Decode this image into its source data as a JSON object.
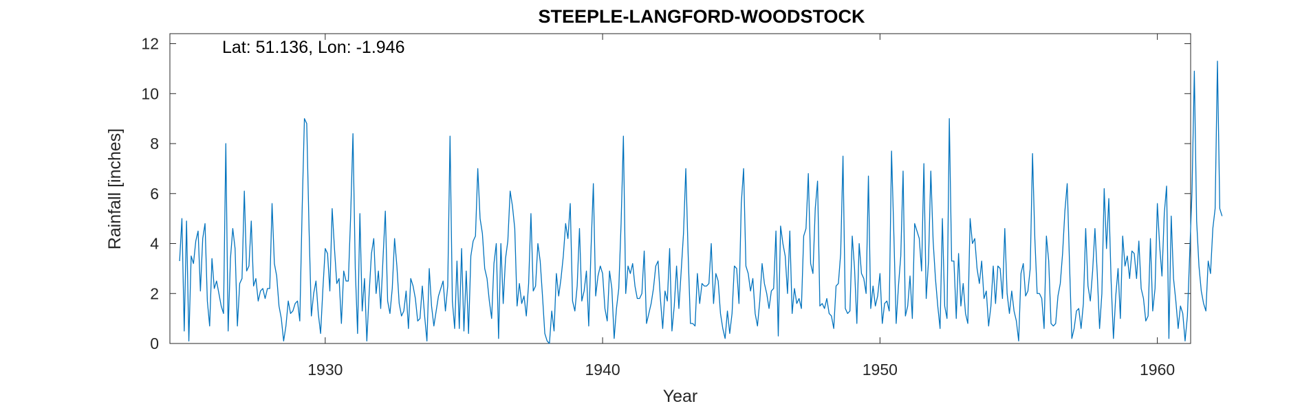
{
  "chart_data": {
    "type": "line",
    "title": "STEEPLE-LANGFORD-WOODSTOCK",
    "annotation": "Lat: 51.136, Lon: -1.946",
    "xlabel": "Year",
    "ylabel": "Rainfall [inches]",
    "xlim": [
      1924.4,
      1961.2
    ],
    "ylim": [
      0,
      12.4
    ],
    "xticks": [
      1930,
      1940,
      1950,
      1960
    ],
    "yticks": [
      0,
      2,
      4,
      6,
      8,
      10,
      12
    ],
    "x_start": 1924.75,
    "x_step_years": 0.08333333,
    "grid": false,
    "box": true,
    "line_color": "#0072BD",
    "series": [
      {
        "values": [
          3.3,
          5.0,
          0.5,
          4.9,
          0.1,
          3.5,
          3.2,
          4.1,
          4.5,
          2.1,
          4.2,
          4.8,
          1.7,
          0.7,
          3.4,
          2.2,
          2.5,
          2.0,
          1.5,
          1.2,
          8.0,
          0.5,
          3.4,
          4.6,
          3.8,
          0.7,
          2.4,
          2.6,
          6.1,
          2.9,
          3.1,
          4.9,
          2.3,
          2.6,
          1.7,
          2.1,
          2.2,
          1.8,
          2.2,
          2.2,
          5.6,
          3.2,
          2.7,
          1.5,
          1.0,
          0.1,
          0.7,
          1.7,
          1.2,
          1.3,
          1.6,
          1.7,
          0.9,
          5.3,
          9.0,
          8.8,
          4.6,
          1.1,
          2.0,
          2.5,
          1.2,
          0.4,
          2.2,
          3.8,
          3.6,
          2.1,
          5.4,
          3.8,
          2.4,
          2.6,
          0.8,
          2.9,
          2.5,
          2.5,
          5.1,
          8.4,
          3.0,
          0.4,
          5.2,
          1.3,
          2.6,
          0.1,
          2.0,
          3.6,
          4.2,
          2.0,
          2.9,
          1.4,
          3.4,
          5.3,
          1.7,
          1.2,
          2.2,
          4.2,
          3.1,
          1.6,
          1.1,
          1.3,
          2.1,
          0.6,
          2.6,
          2.3,
          1.8,
          0.9,
          1.0,
          2.3,
          1.1,
          0.1,
          3.0,
          1.5,
          0.7,
          1.3,
          1.9,
          2.2,
          2.5,
          1.3,
          2.3,
          8.3,
          1.7,
          0.6,
          3.3,
          0.6,
          3.8,
          0.5,
          2.9,
          0.4,
          3.5,
          4.1,
          4.3,
          7.0,
          5.0,
          4.4,
          3.0,
          2.6,
          1.7,
          1.0,
          3.2,
          4.0,
          0.2,
          4.0,
          1.6,
          3.4,
          4.1,
          6.1,
          5.5,
          4.6,
          1.5,
          2.4,
          1.6,
          1.9,
          1.1,
          2.4,
          5.2,
          2.1,
          2.3,
          4.0,
          3.3,
          1.9,
          0.4,
          0.1,
          0.0,
          1.3,
          0.5,
          2.8,
          1.9,
          2.6,
          3.5,
          4.8,
          4.2,
          5.6,
          1.7,
          1.3,
          2.3,
          4.6,
          1.7,
          2.1,
          2.9,
          0.7,
          3.8,
          6.4,
          1.9,
          2.7,
          3.1,
          2.8,
          1.4,
          0.9,
          2.9,
          2.2,
          0.2,
          1.4,
          2.2,
          4.8,
          8.3,
          2.0,
          3.1,
          2.8,
          3.2,
          2.3,
          1.8,
          1.8,
          2.0,
          3.7,
          0.8,
          1.2,
          1.6,
          2.2,
          3.1,
          3.3,
          1.8,
          0.6,
          2.1,
          1.7,
          3.8,
          0.5,
          1.5,
          3.1,
          1.4,
          2.9,
          4.4,
          7.0,
          3.6,
          0.8,
          0.8,
          0.7,
          2.8,
          1.6,
          2.4,
          2.3,
          2.3,
          2.4,
          4.0,
          1.6,
          2.8,
          2.5,
          1.2,
          0.6,
          0.2,
          1.3,
          0.4,
          1.2,
          3.1,
          3.0,
          1.6,
          5.6,
          7.0,
          3.1,
          2.8,
          2.1,
          2.6,
          1.2,
          0.7,
          1.7,
          3.2,
          2.4,
          2.0,
          1.4,
          2.1,
          2.2,
          4.5,
          0.3,
          4.7,
          4.0,
          3.5,
          2.0,
          4.5,
          1.2,
          2.2,
          1.6,
          1.8,
          1.4,
          4.3,
          4.6,
          6.8,
          3.2,
          2.8,
          5.4,
          6.5,
          1.5,
          1.6,
          1.4,
          1.8,
          1.2,
          1.1,
          0.6,
          2.3,
          2.4,
          3.6,
          7.5,
          1.4,
          1.2,
          1.3,
          4.3,
          3.0,
          0.8,
          4.0,
          2.8,
          2.6,
          2.0,
          6.7,
          1.4,
          2.3,
          1.5,
          1.9,
          2.8,
          0.8,
          1.6,
          1.7,
          1.3,
          7.7,
          4.4,
          0.8,
          2.3,
          3.5,
          6.9,
          1.1,
          1.5,
          2.7,
          1.0,
          4.8,
          4.5,
          4.2,
          2.9,
          7.2,
          1.8,
          3.3,
          6.9,
          4.1,
          2.6,
          1.5,
          0.6,
          5.0,
          1.5,
          1.0,
          9.0,
          3.3,
          3.3,
          1.0,
          3.6,
          1.5,
          2.4,
          1.2,
          0.8,
          5.0,
          4.0,
          4.2,
          3.0,
          2.4,
          3.3,
          1.8,
          2.1,
          0.7,
          1.5,
          3.1,
          1.6,
          3.1,
          3.0,
          1.8,
          4.6,
          2.0,
          1.2,
          2.1,
          1.3,
          0.9,
          0.1,
          2.8,
          3.2,
          1.9,
          2.1,
          3.0,
          7.6,
          4.2,
          2.0,
          2.0,
          1.8,
          0.6,
          4.3,
          3.3,
          0.8,
          0.7,
          0.8,
          1.9,
          2.4,
          3.6,
          5.3,
          6.4,
          3.2,
          0.2,
          0.6,
          1.3,
          1.4,
          0.6,
          1.6,
          4.6,
          2.3,
          1.7,
          2.9,
          4.6,
          2.8,
          0.6,
          2.0,
          6.2,
          3.8,
          5.8,
          2.5,
          0.2,
          1.9,
          3.0,
          1.0,
          4.3,
          3.1,
          3.5,
          2.6,
          3.7,
          3.6,
          2.6,
          4.1,
          2.2,
          1.8,
          0.9,
          1.1,
          4.2,
          1.3,
          2.2,
          5.6,
          3.9,
          2.7,
          5.2,
          6.3,
          0.2,
          5.1,
          2.6,
          1.7,
          0.6,
          1.5,
          1.2,
          0.1,
          1.1,
          3.6,
          6.1,
          10.9,
          4.9,
          3.1,
          2.1,
          1.6,
          1.3,
          3.3,
          2.8,
          4.6,
          5.4,
          11.3,
          5.4,
          5.1
        ]
      }
    ]
  }
}
